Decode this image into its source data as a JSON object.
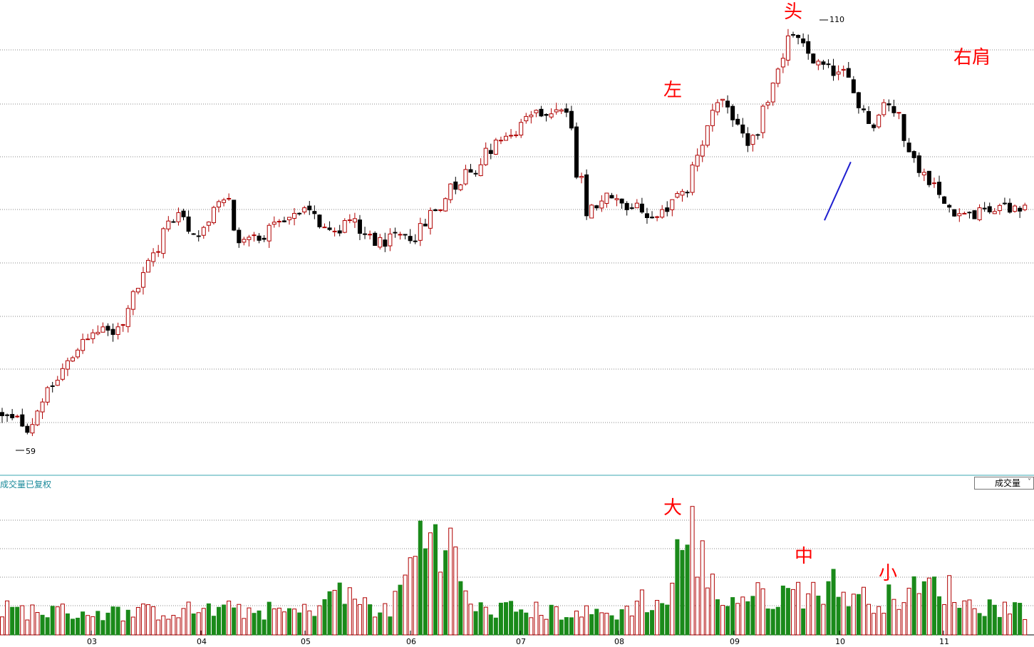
{
  "colors": {
    "up": "#b00000",
    "down": "#000000",
    "vol_up": "#b00000",
    "vol_down": "#1a8a1a",
    "neckline": "#1f1fd0",
    "annotation": "#ff0000",
    "grid": "#888888",
    "divider": "#3aa7b0"
  },
  "labels": {
    "volume_title": "成交量已复权",
    "volume_selector": "成交量",
    "max_price": "110",
    "min_price": "59",
    "ann_head": "头",
    "ann_left": "左",
    "ann_right": "右肩",
    "ann_big": "大",
    "ann_mid": "中",
    "ann_small": "小"
  },
  "chart_data": {
    "type": "candlestick",
    "x_ticks": [
      "03",
      "04",
      "05",
      "06",
      "07",
      "08",
      "09",
      "10",
      "11"
    ],
    "price_max": 110,
    "price_min": 59,
    "neckline": [
      [
        59.5,
        85.8
      ],
      [
        61.4,
        93.0
      ]
    ],
    "price_path": [
      [
        0,
        62
      ],
      [
        2,
        59
      ],
      [
        3,
        64
      ],
      [
        6,
        72
      ],
      [
        8,
        72
      ],
      [
        10,
        78
      ],
      [
        12,
        86
      ],
      [
        13,
        86
      ],
      [
        14,
        84
      ],
      [
        16,
        88
      ],
      [
        17,
        83
      ],
      [
        20,
        85
      ],
      [
        22,
        87
      ],
      [
        24,
        84
      ],
      [
        25,
        86
      ],
      [
        27,
        83
      ],
      [
        30,
        84
      ],
      [
        32,
        89
      ],
      [
        35,
        94
      ],
      [
        38,
        98
      ],
      [
        40,
        100
      ],
      [
        41,
        99
      ],
      [
        42,
        86
      ],
      [
        44,
        89
      ],
      [
        45,
        87
      ],
      [
        46,
        88
      ],
      [
        47,
        85
      ],
      [
        49,
        89
      ],
      [
        51,
        97
      ],
      [
        52,
        101
      ],
      [
        54,
        95
      ],
      [
        55,
        99
      ],
      [
        57,
        109
      ],
      [
        59,
        105
      ],
      [
        61,
        104
      ],
      [
        62,
        100
      ],
      [
        63,
        97
      ],
      [
        64,
        101
      ],
      [
        66,
        93
      ],
      [
        67,
        91
      ],
      [
        68,
        88
      ],
      [
        70,
        86
      ],
      [
        71,
        87
      ]
    ],
    "volume_path": [
      [
        0,
        3.5
      ],
      [
        8,
        3
      ],
      [
        15,
        3.5
      ],
      [
        22,
        3.2
      ],
      [
        24,
        6
      ],
      [
        28,
        3
      ],
      [
        30,
        12
      ],
      [
        31,
        16
      ],
      [
        32,
        14
      ],
      [
        34,
        3.5
      ],
      [
        37,
        3.5
      ],
      [
        42,
        3
      ],
      [
        45,
        3
      ],
      [
        46,
        5
      ],
      [
        48,
        4
      ],
      [
        49,
        12
      ],
      [
        50,
        14
      ],
      [
        51,
        8
      ],
      [
        52,
        5
      ],
      [
        56,
        5.5
      ],
      [
        58,
        6
      ],
      [
        60,
        7
      ],
      [
        62,
        5
      ],
      [
        64,
        5
      ],
      [
        66,
        6
      ],
      [
        68,
        7
      ],
      [
        70,
        4
      ],
      [
        72,
        4
      ],
      [
        74,
        3.5
      ]
    ]
  }
}
